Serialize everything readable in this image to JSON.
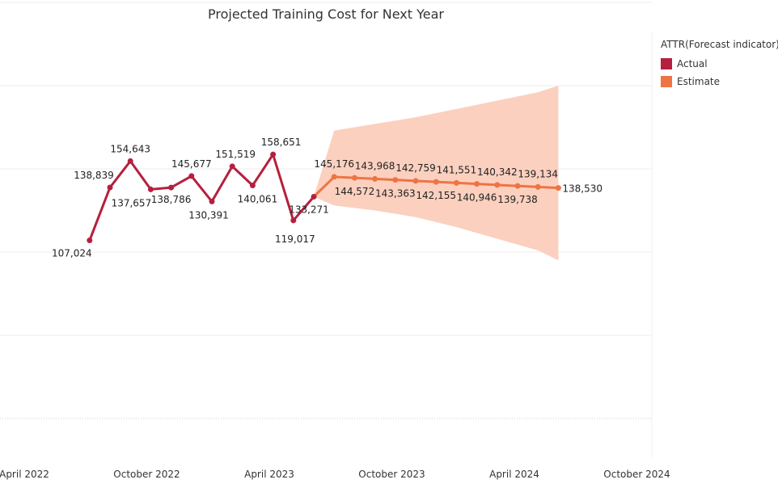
{
  "chart_data": {
    "type": "line",
    "title": "Projected Training Cost for Next Year",
    "xlabel": "",
    "ylabel": "",
    "x_ticks": [
      "April 2022",
      "October 2022",
      "April 2023",
      "October 2023",
      "April 2024",
      "October 2024"
    ],
    "legend": {
      "title": "ATTR(Forecast indicator)",
      "position": "top-right",
      "items": [
        {
          "name": "Actual",
          "color": "#b5203e"
        },
        {
          "name": "Estimate",
          "color": "#ee7443"
        }
      ]
    },
    "grid": true,
    "ylim": [
      40000,
      290000
    ],
    "series": [
      {
        "name": "Actual",
        "color": "#b5203e",
        "points": [
          {
            "x": "2022-08",
            "y": 107024,
            "label": "107,024"
          },
          {
            "x": "2022-09",
            "y": 138839,
            "label": "138,839"
          },
          {
            "x": "2022-10",
            "y": 154643,
            "label": "154,643"
          },
          {
            "x": "2022-11",
            "y": 137657,
            "label": "137,657"
          },
          {
            "x": "2022-12",
            "y": 138786,
            "label": "138,786"
          },
          {
            "x": "2023-01",
            "y": 145677,
            "label": "145,677"
          },
          {
            "x": "2023-02",
            "y": 130391,
            "label": "130,391"
          },
          {
            "x": "2023-03",
            "y": 151519,
            "label": "151,519"
          },
          {
            "x": "2023-04",
            "y": 140061,
            "label": "140,061"
          },
          {
            "x": "2023-05",
            "y": 158651,
            "label": "158,651"
          },
          {
            "x": "2023-06",
            "y": 119017,
            "label": "119,017"
          },
          {
            "x": "2023-07",
            "y": 133271,
            "label": "133,271"
          }
        ]
      },
      {
        "name": "Estimate",
        "color": "#ee7443",
        "points": [
          {
            "x": "2023-07",
            "y": 133271
          },
          {
            "x": "2023-08",
            "y": 145176,
            "label": "145,176"
          },
          {
            "x": "2023-09",
            "y": 144572,
            "label": "144,572"
          },
          {
            "x": "2023-10",
            "y": 143968,
            "label": "143,968"
          },
          {
            "x": "2023-11",
            "y": 143363,
            "label": "143,363"
          },
          {
            "x": "2023-12",
            "y": 142759,
            "label": "142,759"
          },
          {
            "x": "2024-01",
            "y": 142155,
            "label": "142,155"
          },
          {
            "x": "2024-02",
            "y": 141551,
            "label": "141,551"
          },
          {
            "x": "2024-03",
            "y": 140946,
            "label": "140,946"
          },
          {
            "x": "2024-04",
            "y": 140342,
            "label": "140,342"
          },
          {
            "x": "2024-05",
            "y": 139738,
            "label": "139,738"
          },
          {
            "x": "2024-06",
            "y": 139134,
            "label": "139,134"
          },
          {
            "x": "2024-07",
            "y": 138530,
            "label": "138,530"
          }
        ]
      }
    ],
    "prediction_band": {
      "color": "#fbd0bf",
      "points": [
        {
          "x": "2023-08",
          "low": 128000,
          "high": 173000
        },
        {
          "x": "2023-10",
          "low": 125000,
          "high": 177000
        },
        {
          "x": "2023-12",
          "low": 121000,
          "high": 181000
        },
        {
          "x": "2024-02",
          "low": 115000,
          "high": 186000
        },
        {
          "x": "2024-04",
          "low": 108000,
          "high": 191000
        },
        {
          "x": "2024-06",
          "low": 101000,
          "high": 196000
        },
        {
          "x": "2024-07",
          "low": 95000,
          "high": 200000
        }
      ]
    }
  }
}
